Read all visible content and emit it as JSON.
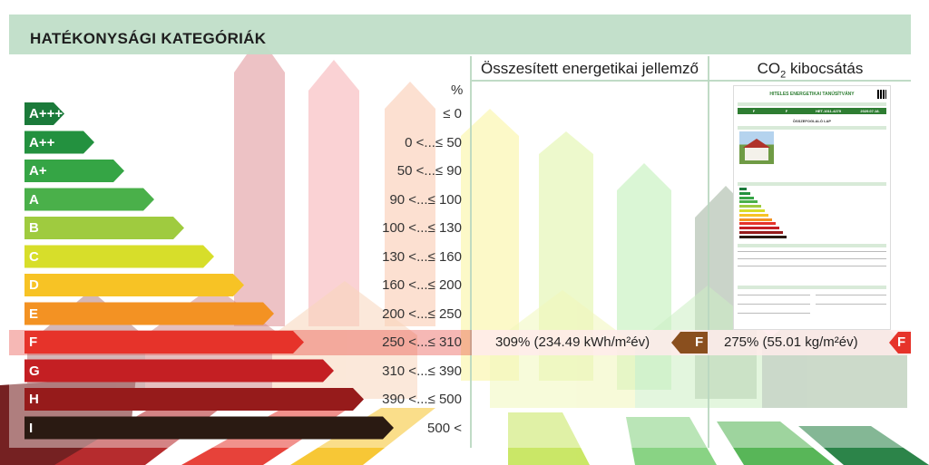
{
  "title": "HATÉKONYSÁGI KATEGÓRIÁK",
  "columns": {
    "primary_energy": "Összesített energetikai jellemző",
    "co2_prefix": "CO",
    "co2_sub": "2",
    "co2_suffix": " kibocsátás"
  },
  "percent_header": "%",
  "chart_data": {
    "type": "bar",
    "categories": [
      "A+++",
      "A++",
      "A+",
      "A",
      "B",
      "C",
      "D",
      "E",
      "F",
      "G",
      "H",
      "I"
    ],
    "ranges": [
      "≤ 0",
      "0 <...≤ 50",
      "50 <...≤ 90",
      "90 <...≤ 100",
      "100 <...≤ 130",
      "130 <...≤ 160",
      "160 <...≤ 200",
      "200 <...≤ 250",
      "250 <...≤ 310",
      "310 <...≤ 390",
      "390 <...≤ 500",
      "500 <"
    ],
    "colors": [
      "#1b7a3a",
      "#23913f",
      "#35a545",
      "#4ab04a",
      "#9fcb3f",
      "#d7de2a",
      "#f7c325",
      "#f39223",
      "#e6332a",
      "#c41f23",
      "#961b1b",
      "#2a1a12"
    ],
    "highlight_index": 8
  },
  "results": {
    "primary_energy_value": "309% (234.49 kWh/m²év)",
    "primary_energy_class": "F",
    "co2_value": "275% (55.01 kg/m²év)",
    "co2_class": "F"
  },
  "certificate": {
    "title": "HITELES ENERGETIKAI TANÚSÍTVÁNY",
    "sheet": "ÖSSZEFOGLALÓ LAP",
    "values": [
      "F",
      "F",
      "HET-1011-4279",
      "2029.07.18."
    ]
  },
  "accent_colors": {
    "header": "#c0dec8",
    "highlight": "#e6332a"
  }
}
